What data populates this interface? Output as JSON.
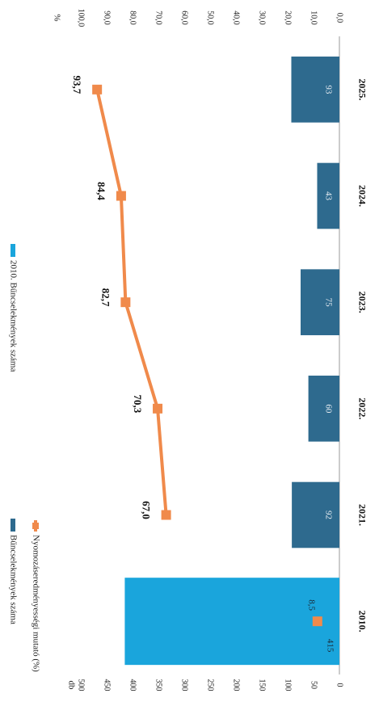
{
  "chart_data": {
    "type": "bar",
    "categories": [
      "2010.",
      "2021.",
      "2022.",
      "2023.",
      "2024.",
      "2025."
    ],
    "left_axis_unit": "db",
    "right_axis_unit": "%",
    "left_ticks": [
      "0",
      "50",
      "100",
      "150",
      "200",
      "250",
      "300",
      "350",
      "400",
      "450",
      "500"
    ],
    "right_ticks": [
      "0,0",
      "10,0",
      "20,0",
      "30,0",
      "40,0",
      "50,0",
      "60,0",
      "70,0",
      "80,0",
      "90,0",
      "100,0"
    ],
    "ylim_left": [
      0,
      500
    ],
    "ylim_right": [
      0,
      100
    ],
    "series": [
      {
        "name": "Bűncselekmények száma",
        "kind": "bar",
        "color": "#2e6a8e",
        "values": [
          null,
          92,
          60,
          75,
          43,
          93
        ],
        "labels": [
          "",
          "92",
          "60",
          "75",
          "43",
          "93"
        ]
      },
      {
        "name": "2010. Bűncselekmények száma",
        "kind": "bar",
        "color": "#1aa5dc",
        "values": [
          415,
          null,
          null,
          null,
          null,
          null
        ],
        "labels": [
          "415",
          "",
          "",
          "",
          "",
          ""
        ]
      },
      {
        "name": "Nyomozáseredményességi mutató (%)",
        "kind": "line",
        "axis": "right",
        "color": "#f08a4b",
        "values": [
          8.5,
          67.0,
          70.3,
          82.7,
          84.4,
          93.7
        ],
        "labels": [
          "8,5",
          "67,0",
          "70,3",
          "82,7",
          "84,4",
          "93,7"
        ],
        "connected_from_index": 1
      }
    ]
  }
}
